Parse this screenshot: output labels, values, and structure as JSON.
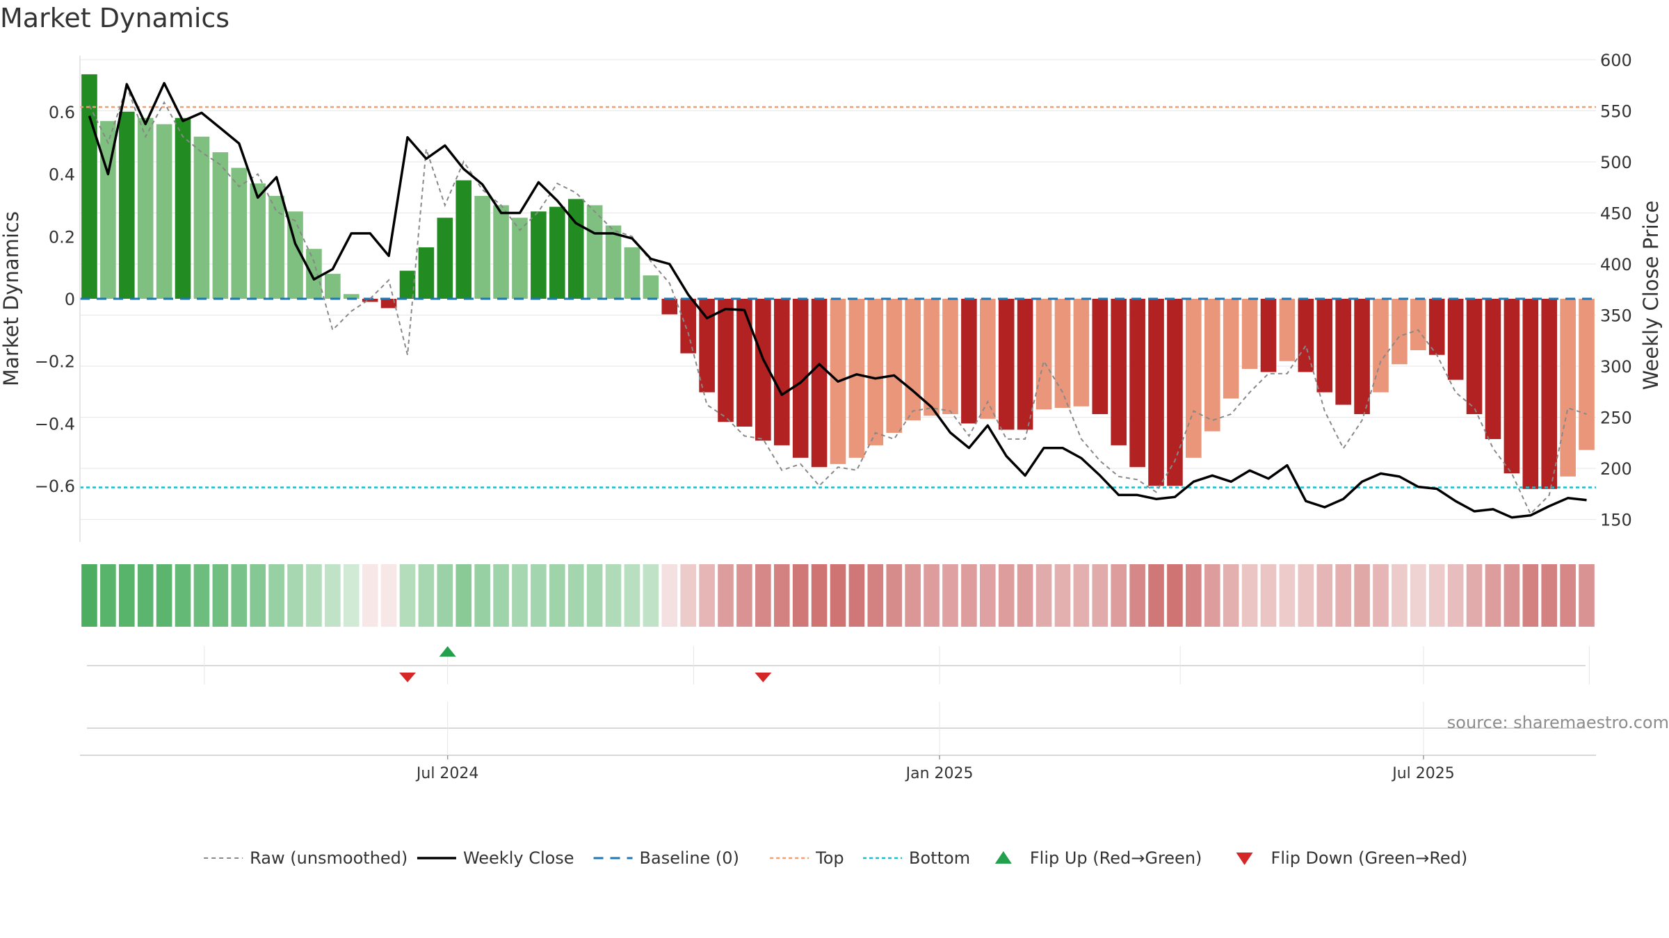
{
  "title": "Market Dynamics",
  "source": "source: sharemaestro.com",
  "chart_data": {
    "type": "bar",
    "left_axis": {
      "label": "Market Dynamics",
      "ylim": [
        -0.78,
        0.78
      ],
      "ticks": [
        0.6,
        0.4,
        0.2,
        0,
        -0.2,
        -0.4,
        -0.6
      ],
      "tick_labels": [
        "0.6",
        "0.4",
        "0.2",
        "0",
        "−0.2",
        "−0.4",
        "−0.6"
      ]
    },
    "right_axis": {
      "label": "Weekly Close Price",
      "ylim": [
        128,
        604
      ],
      "ticks": [
        600,
        550,
        500,
        450,
        400,
        350,
        300,
        250,
        200,
        150
      ],
      "tick_labels": [
        "600",
        "550",
        "500",
        "450",
        "400",
        "350",
        "300",
        "250",
        "200",
        "150"
      ]
    },
    "x_axis": {
      "start_date": "2024-02-18",
      "end_date": "2025-09-07",
      "ticks": [
        "2024-07-01",
        "2025-01-01",
        "2025-07-01"
      ],
      "tick_labels": [
        "Jul 2024",
        "Jan 2025",
        "Jul 2025"
      ]
    },
    "bottom_gridline_dates": [
      "2024-04-01",
      "2024-10-01",
      "2025-04-01",
      "2025-09-01"
    ],
    "dates": [
      "2024-02-18",
      "2024-02-25",
      "2024-03-03",
      "2024-03-10",
      "2024-03-17",
      "2024-03-24",
      "2024-03-31",
      "2024-04-07",
      "2024-04-14",
      "2024-04-21",
      "2024-04-28",
      "2024-05-05",
      "2024-05-12",
      "2024-05-19",
      "2024-05-26",
      "2024-06-02",
      "2024-06-09",
      "2024-06-16",
      "2024-06-23",
      "2024-06-30",
      "2024-07-07",
      "2024-07-14",
      "2024-07-21",
      "2024-07-28",
      "2024-08-04",
      "2024-08-11",
      "2024-08-18",
      "2024-08-25",
      "2024-09-01",
      "2024-09-08",
      "2024-09-15",
      "2024-09-22",
      "2024-09-29",
      "2024-10-06",
      "2024-10-13",
      "2024-10-20",
      "2024-10-27",
      "2024-11-03",
      "2024-11-10",
      "2024-11-17",
      "2024-11-24",
      "2024-12-01",
      "2024-12-08",
      "2024-12-15",
      "2024-12-22",
      "2024-12-29",
      "2025-01-05",
      "2025-01-12",
      "2025-01-19",
      "2025-01-26",
      "2025-02-02",
      "2025-02-09",
      "2025-02-16",
      "2025-02-23",
      "2025-03-02",
      "2025-03-09",
      "2025-03-16",
      "2025-03-23",
      "2025-03-30",
      "2025-04-06",
      "2025-04-13",
      "2025-04-20",
      "2025-04-27",
      "2025-05-04",
      "2025-05-11",
      "2025-05-18",
      "2025-05-25",
      "2025-06-01",
      "2025-06-08",
      "2025-06-15",
      "2025-06-22",
      "2025-06-29",
      "2025-07-06",
      "2025-07-13",
      "2025-07-20",
      "2025-07-27",
      "2025-08-03",
      "2025-08-10",
      "2025-08-17",
      "2025-08-24",
      "2025-08-31"
    ],
    "series": [
      {
        "name": "Market Dynamics",
        "values": [
          0.72,
          0.57,
          0.6,
          0.58,
          0.56,
          0.58,
          0.52,
          0.47,
          0.42,
          0.37,
          0.33,
          0.28,
          0.16,
          0.08,
          0.015,
          -0.01,
          -0.03,
          0.09,
          0.165,
          0.26,
          0.38,
          0.33,
          0.3,
          0.26,
          0.28,
          0.295,
          0.32,
          0.3,
          0.235,
          0.165,
          0.075,
          -0.05,
          -0.175,
          -0.3,
          -0.395,
          -0.41,
          -0.455,
          -0.47,
          -0.51,
          -0.54,
          -0.53,
          -0.51,
          -0.47,
          -0.43,
          -0.39,
          -0.375,
          -0.37,
          -0.4,
          -0.385,
          -0.42,
          -0.42,
          -0.355,
          -0.35,
          -0.345,
          -0.37,
          -0.47,
          -0.54,
          -0.6,
          -0.6,
          -0.51,
          -0.425,
          -0.32,
          -0.225,
          -0.235,
          -0.2,
          -0.235,
          -0.3,
          -0.34,
          -0.37,
          -0.3,
          -0.21,
          -0.165,
          -0.18,
          -0.26,
          -0.37,
          -0.45,
          -0.56,
          -0.61,
          -0.61,
          -0.57,
          -0.485
        ],
        "strength": [
          "strong",
          "light",
          "strong",
          "light",
          "light",
          "strong",
          "light",
          "light",
          "light",
          "light",
          "light",
          "light",
          "light",
          "light",
          "light",
          "strong",
          "strong",
          "strong",
          "strong",
          "strong",
          "strong",
          "light",
          "light",
          "light",
          "strong",
          "strong",
          "strong",
          "light",
          "light",
          "light",
          "light",
          "strong",
          "strong",
          "strong",
          "strong",
          "strong",
          "strong",
          "strong",
          "strong",
          "strong",
          "light",
          "light",
          "light",
          "light",
          "light",
          "light",
          "light",
          "strong",
          "light",
          "strong",
          "strong",
          "light",
          "light",
          "light",
          "strong",
          "strong",
          "strong",
          "strong",
          "strong",
          "light",
          "light",
          "light",
          "light",
          "strong",
          "light",
          "strong",
          "strong",
          "strong",
          "strong",
          "light",
          "light",
          "light",
          "strong",
          "strong",
          "strong",
          "strong",
          "strong",
          "strong",
          "strong",
          "light",
          "light"
        ]
      },
      {
        "name": "Raw (unsmoothed)",
        "values": [
          0.62,
          0.5,
          0.68,
          0.52,
          0.63,
          0.52,
          0.47,
          0.43,
          0.36,
          0.4,
          0.28,
          0.25,
          0.12,
          -0.1,
          -0.04,
          0.0,
          0.06,
          -0.18,
          0.48,
          0.3,
          0.44,
          0.35,
          0.3,
          0.22,
          0.28,
          0.37,
          0.34,
          0.28,
          0.22,
          0.2,
          0.12,
          0.05,
          -0.11,
          -0.34,
          -0.38,
          -0.44,
          -0.45,
          -0.55,
          -0.53,
          -0.6,
          -0.54,
          -0.55,
          -0.43,
          -0.45,
          -0.36,
          -0.35,
          -0.36,
          -0.44,
          -0.33,
          -0.45,
          -0.45,
          -0.2,
          -0.3,
          -0.45,
          -0.52,
          -0.57,
          -0.58,
          -0.62,
          -0.52,
          -0.36,
          -0.39,
          -0.37,
          -0.3,
          -0.24,
          -0.24,
          -0.15,
          -0.36,
          -0.48,
          -0.39,
          -0.2,
          -0.12,
          -0.1,
          -0.18,
          -0.3,
          -0.35,
          -0.48,
          -0.56,
          -0.69,
          -0.63,
          -0.35,
          -0.37
        ]
      },
      {
        "name": "Weekly Close",
        "values": [
          545,
          488,
          576,
          537,
          577,
          540,
          548,
          533,
          518,
          465,
          485,
          420,
          385,
          395,
          430,
          430,
          408,
          524,
          503,
          516,
          493,
          478,
          450,
          450,
          480,
          462,
          440,
          430,
          430,
          425,
          405,
          400,
          370,
          347,
          356,
          355,
          307,
          272,
          284,
          302,
          285,
          292,
          288,
          291,
          276,
          260,
          235,
          220,
          242,
          212,
          193,
          220,
          220,
          210,
          193,
          174,
          174,
          170,
          172,
          187,
          193,
          187,
          198,
          190,
          203,
          168,
          162,
          170,
          187,
          195,
          192,
          182,
          180,
          168,
          158,
          160,
          152,
          154,
          163,
          171,
          169
        ]
      },
      {
        "name": "Baseline (0)",
        "value": 0
      },
      {
        "name": "Top",
        "value": 0.615
      },
      {
        "name": "Bottom",
        "value": -0.605
      }
    ],
    "heatmap_strip": {
      "values": [
        0.85,
        0.8,
        0.8,
        0.78,
        0.78,
        0.74,
        0.7,
        0.68,
        0.64,
        0.58,
        0.5,
        0.42,
        0.36,
        0.3,
        0.22,
        -0.14,
        -0.14,
        0.36,
        0.42,
        0.48,
        0.56,
        0.5,
        0.46,
        0.42,
        0.44,
        0.46,
        0.44,
        0.42,
        0.38,
        0.34,
        0.3,
        -0.18,
        -0.3,
        -0.42,
        -0.56,
        -0.62,
        -0.68,
        -0.72,
        -0.78,
        -0.8,
        -0.8,
        -0.78,
        -0.72,
        -0.66,
        -0.6,
        -0.56,
        -0.54,
        -0.56,
        -0.54,
        -0.56,
        -0.56,
        -0.48,
        -0.46,
        -0.46,
        -0.48,
        -0.56,
        -0.68,
        -0.78,
        -0.8,
        -0.7,
        -0.56,
        -0.46,
        -0.34,
        -0.34,
        -0.3,
        -0.34,
        -0.42,
        -0.46,
        -0.5,
        -0.42,
        -0.3,
        -0.26,
        -0.3,
        -0.38,
        -0.48,
        -0.56,
        -0.62,
        -0.72,
        -0.72,
        -0.68,
        -0.62
      ]
    },
    "flips": [
      {
        "date": "2024-06-16",
        "direction": "down",
        "name": "Flip Down (Green→Red)"
      },
      {
        "date": "2024-07-01",
        "direction": "up",
        "name": "Flip Up (Red→Green)"
      },
      {
        "date": "2024-10-27",
        "direction": "down",
        "name": "Flip Down (Green→Red)"
      }
    ],
    "legend": {
      "placement": "bottom-center",
      "items": [
        {
          "name": "Raw (unsmoothed)",
          "kind": "dashed-line",
          "color": "#888888"
        },
        {
          "name": "Weekly Close",
          "kind": "line",
          "color": "#000000"
        },
        {
          "name": "Baseline (0)",
          "kind": "dashed-line",
          "color": "#1f77b4"
        },
        {
          "name": "Top",
          "kind": "dotted-line",
          "color": "#f0a070"
        },
        {
          "name": "Bottom",
          "kind": "dotted-line",
          "color": "#17becf"
        },
        {
          "name": "Flip Up (Red→Green)",
          "kind": "triangle-up",
          "color": "#22a04b"
        },
        {
          "name": "Flip Down (Green→Red)",
          "kind": "triangle-down",
          "color": "#d62728"
        }
      ]
    },
    "colors": {
      "strong_green": "#228b22",
      "light_green": "#7fbf7f",
      "strong_red": "#b22222",
      "light_red": "#e9967a",
      "close_line": "#000000",
      "raw_line": "#888888",
      "baseline": "#1f77b4",
      "top": "#f0a070",
      "bottom": "#17becf",
      "flip_up": "#22a04b",
      "flip_down": "#d62728"
    },
    "grid": true
  }
}
